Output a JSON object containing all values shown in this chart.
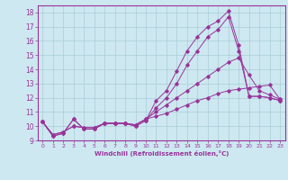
{
  "xlabel": "Windchill (Refroidissement éolien,°C)",
  "bg_color": "#cde8f0",
  "line_color": "#993399",
  "ylim": [
    9.0,
    18.5
  ],
  "xlim": [
    -0.5,
    23.5
  ],
  "yticks": [
    9,
    10,
    11,
    12,
    13,
    14,
    15,
    16,
    17,
    18
  ],
  "xticks": [
    0,
    1,
    2,
    3,
    4,
    5,
    6,
    7,
    8,
    9,
    10,
    11,
    12,
    13,
    14,
    15,
    16,
    17,
    18,
    19,
    20,
    21,
    22,
    23
  ],
  "series": [
    [
      10.3,
      9.3,
      9.5,
      10.5,
      9.8,
      9.8,
      10.2,
      10.2,
      10.2,
      10.0,
      10.4,
      11.8,
      12.5,
      13.9,
      15.3,
      16.3,
      17.0,
      17.4,
      18.1,
      15.7,
      12.1,
      12.1,
      12.0,
      11.8
    ],
    [
      10.3,
      9.3,
      9.5,
      10.5,
      9.8,
      9.8,
      10.2,
      10.2,
      10.2,
      10.0,
      10.4,
      11.3,
      12.0,
      13.0,
      14.3,
      15.3,
      16.3,
      16.8,
      17.7,
      15.3,
      12.1,
      12.1,
      12.0,
      11.8
    ],
    [
      10.3,
      9.4,
      9.6,
      10.0,
      9.9,
      9.9,
      10.2,
      10.2,
      10.2,
      10.1,
      10.5,
      11.0,
      11.5,
      12.0,
      12.5,
      13.0,
      13.5,
      14.0,
      14.5,
      14.8,
      13.6,
      12.5,
      12.2,
      11.9
    ],
    [
      10.3,
      9.4,
      9.6,
      10.0,
      9.9,
      9.9,
      10.2,
      10.2,
      10.2,
      10.1,
      10.5,
      10.7,
      10.9,
      11.2,
      11.5,
      11.8,
      12.0,
      12.3,
      12.5,
      12.6,
      12.7,
      12.8,
      12.9,
      11.9
    ]
  ]
}
